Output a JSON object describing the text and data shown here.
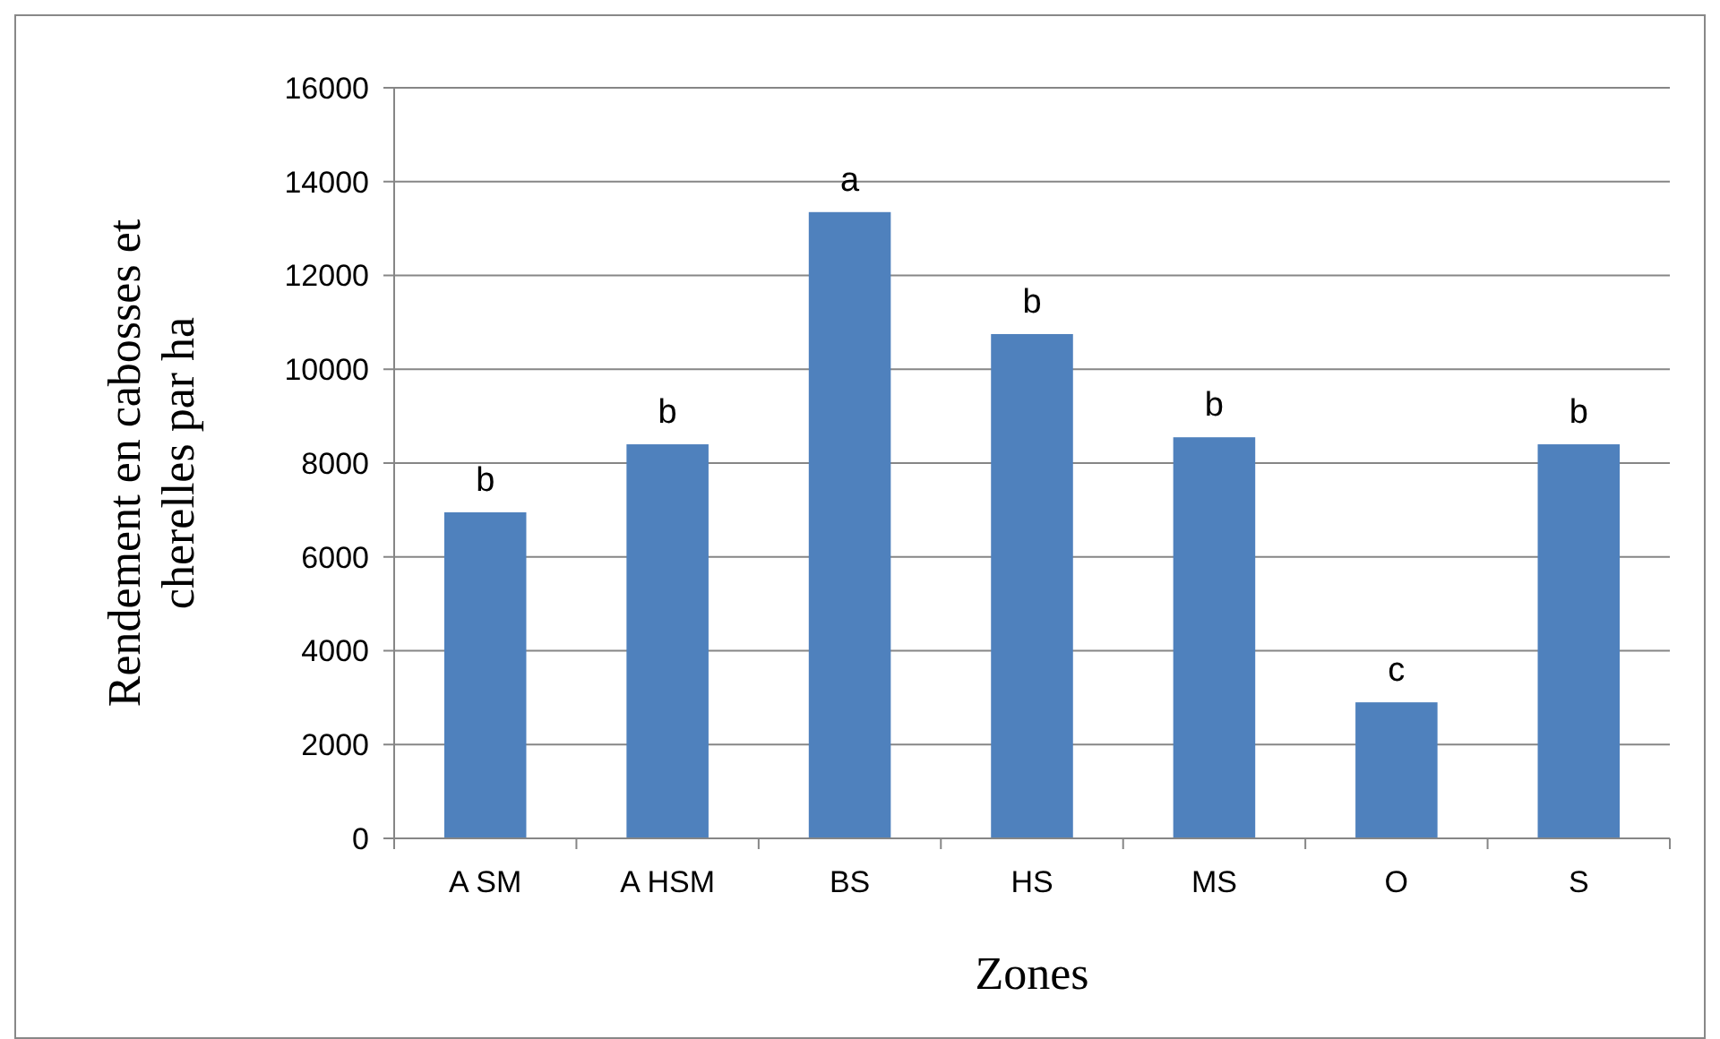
{
  "chart_data": {
    "type": "bar",
    "xlabel": "Zones",
    "ylabel": "Rendement en cabosses et cherelles par ha",
    "categories": [
      "A SM",
      "A HSM",
      "BS",
      "HS",
      "MS",
      "O",
      "S"
    ],
    "values": [
      6950,
      8400,
      13350,
      10750,
      8550,
      2900,
      8400
    ],
    "color": "#4f81bd",
    "ylim": [
      0,
      16000
    ],
    "yticks": [
      0,
      2000,
      4000,
      6000,
      8000,
      10000,
      12000,
      14000,
      16000
    ],
    "grid": "y",
    "annotations": [
      {
        "text": "b",
        "x": "A SM",
        "y": 6950
      },
      {
        "text": "b",
        "x": "A HSM",
        "y": 8400
      },
      {
        "text": "a",
        "x": "BS",
        "y": 13350
      },
      {
        "text": "b",
        "x": "HS",
        "y": 10750
      },
      {
        "text": "b",
        "x": "MS",
        "y": 8550
      },
      {
        "text": "c",
        "x": "O",
        "y": 2900
      },
      {
        "text": "b",
        "x": "S",
        "y": 8400
      }
    ]
  }
}
